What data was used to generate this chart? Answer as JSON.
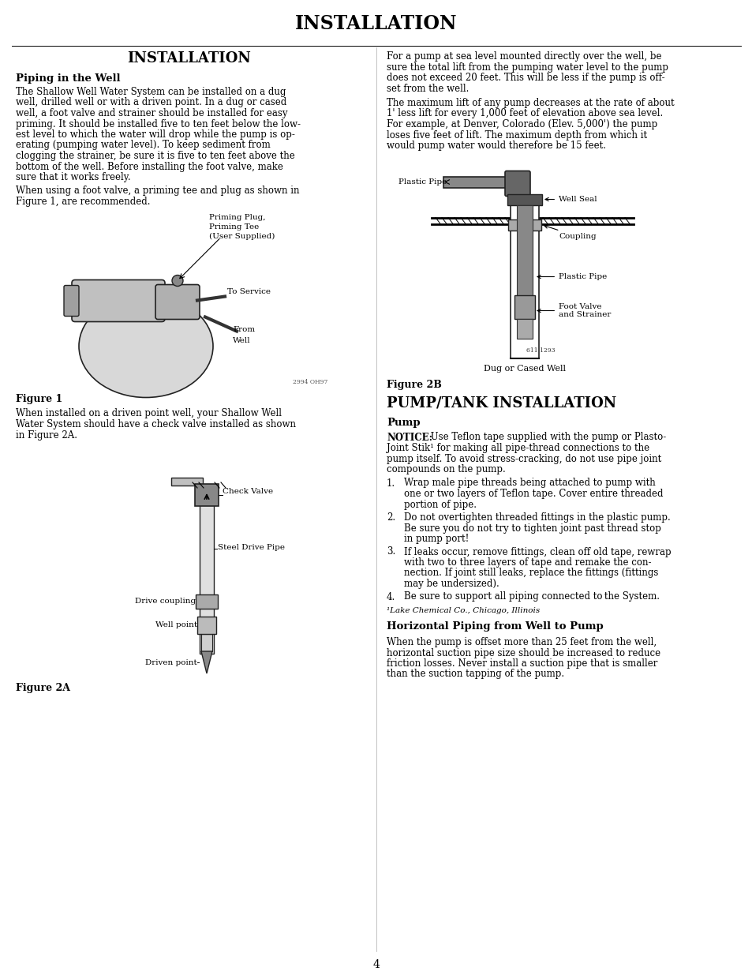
{
  "page_title": "INSTALLATION",
  "left_col_title": "INSTALLATION",
  "section1_title": "Piping in the Well",
  "body1_lines": [
    "The Shallow Well Water System can be installed on a dug",
    "well, drilled well or with a driven point. In a dug or cased",
    "well, a foot valve and strainer should be installed for easy",
    "priming. It should be installed five to ten feet below the low-",
    "est level to which the water will drop while the pump is op-",
    "erating (pumping water level). To keep sediment from",
    "clogging the strainer, be sure it is five to ten feet above the",
    "bottom of the well. Before installing the foot valve, make",
    "sure that it works freely."
  ],
  "body2_lines": [
    "When using a foot valve, a priming tee and plug as shown in",
    "Figure 1, are recommended."
  ],
  "fig1_label": "Figure 1",
  "fig1_caption_lines": [
    "When installed on a driven point well, your Shallow Well",
    "Water System should have a check valve installed as shown",
    "in Figure 2A."
  ],
  "fig2a_label": "Figure 2A",
  "rp1_lines": [
    "For a pump at sea level mounted directly over the well, be",
    "sure the total lift from the pumping water level to the pump",
    "does not exceed 20 feet. This will be less if the pump is off-",
    "set from the well."
  ],
  "rp2_lines": [
    "The maximum lift of any pump decreases at the rate of about",
    "1' less lift for every 1,000 feet of elevation above sea level.",
    "For example, at Denver, Colorado (Elev. 5,000') the pump",
    "loses five feet of lift. The maximum depth from which it",
    "would pump water would therefore be 15 feet."
  ],
  "fig2b_label": "Figure 2B",
  "fig2b_caption": "Dug or Cased Well",
  "pump_tank_title": "PUMP/TANK INSTALLATION",
  "pump_section_title": "Pump",
  "notice_lines": [
    "NOTICE: Use Teflon tape supplied with the pump or Plasto-",
    "Joint Stik¹ for making all pipe-thread connections to the",
    "pump itself. To avoid stress-cracking, do not use pipe joint",
    "compounds on the pump."
  ],
  "step1_lines": [
    "Wrap male pipe threads being attached to pump with",
    "one or two layers of Teflon tape. Cover entire threaded",
    "portion of pipe."
  ],
  "step2_lines": [
    "Do not overtighten threaded fittings in the plastic pump.",
    "Be sure you do not try to tighten joint past thread stop",
    "in pump port!"
  ],
  "step3_lines": [
    "If leaks occur, remove fittings, clean off old tape, rewrap",
    "with two to three layers of tape and remake the con-",
    "nection. If joint still leaks, replace the fittings (fittings",
    "may be undersized)."
  ],
  "step4_lines": [
    "Be sure to support all piping connected to the System."
  ],
  "footnote": "¹Lake Chemical Co., Chicago, Illinois",
  "horiz_title": "Horizontal Piping from Well to Pump",
  "horiz_lines": [
    "When the pump is offset more than 25 feet from the well,",
    "horizontal suction pipe size should be increased to reduce",
    "friction losses. Never install a suction pipe that is smaller",
    "than the suction tapping of the pump."
  ],
  "page_number": "4",
  "bg_color": "#ffffff",
  "text_color": "#000000"
}
